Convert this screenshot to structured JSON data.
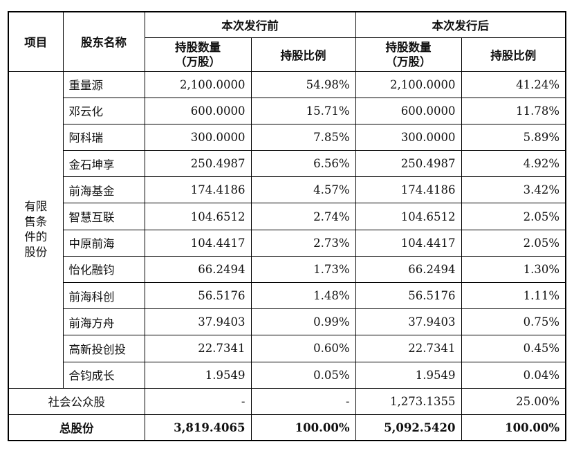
{
  "header": {
    "item": "项目",
    "shareholder": "股东名称",
    "before": "本次发行前",
    "after": "本次发行后",
    "shares_line1": "持股数量",
    "shares_line2": "（万股）",
    "ratio": "持股比例"
  },
  "category_label": [
    "有限",
    "售条",
    "件的",
    "股份"
  ],
  "rows": [
    {
      "name": "重量源",
      "before_shares": "2,100.0000",
      "before_ratio": "54.98%",
      "after_shares": "2,100.0000",
      "after_ratio": "41.24%"
    },
    {
      "name": "邓云化",
      "before_shares": "600.0000",
      "before_ratio": "15.71%",
      "after_shares": "600.0000",
      "after_ratio": "11.78%"
    },
    {
      "name": "阿科瑞",
      "before_shares": "300.0000",
      "before_ratio": "7.85%",
      "after_shares": "300.0000",
      "after_ratio": "5.89%"
    },
    {
      "name": "金石坤享",
      "before_shares": "250.4987",
      "before_ratio": "6.56%",
      "after_shares": "250.4987",
      "after_ratio": "4.92%"
    },
    {
      "name": "前海基金",
      "before_shares": "174.4186",
      "before_ratio": "4.57%",
      "after_shares": "174.4186",
      "after_ratio": "3.42%"
    },
    {
      "name": "智慧互联",
      "before_shares": "104.6512",
      "before_ratio": "2.74%",
      "after_shares": "104.6512",
      "after_ratio": "2.05%"
    },
    {
      "name": "中原前海",
      "before_shares": "104.4417",
      "before_ratio": "2.73%",
      "after_shares": "104.4417",
      "after_ratio": "2.05%"
    },
    {
      "name": "怡化融钧",
      "before_shares": "66.2494",
      "before_ratio": "1.73%",
      "after_shares": "66.2494",
      "after_ratio": "1.30%"
    },
    {
      "name": "前海科创",
      "before_shares": "56.5176",
      "before_ratio": "1.48%",
      "after_shares": "56.5176",
      "after_ratio": "1.11%"
    },
    {
      "name": "前海方舟",
      "before_shares": "37.9403",
      "before_ratio": "0.99%",
      "after_shares": "37.9403",
      "after_ratio": "0.75%"
    },
    {
      "name": "高新投创投",
      "before_shares": "22.7341",
      "before_ratio": "0.60%",
      "after_shares": "22.7341",
      "after_ratio": "0.45%"
    },
    {
      "name": "合钧成长",
      "before_shares": "1.9549",
      "before_ratio": "0.05%",
      "after_shares": "1.9549",
      "after_ratio": "0.04%"
    }
  ],
  "public_row": {
    "label": "社会公众股",
    "before_shares": "-",
    "before_ratio": "-",
    "after_shares": "1,273.1355",
    "after_ratio": "25.00%"
  },
  "total_row": {
    "label": "总股份",
    "before_shares": "3,819.4065",
    "before_ratio": "100.00%",
    "after_shares": "5,092.5420",
    "after_ratio": "100.00%"
  }
}
